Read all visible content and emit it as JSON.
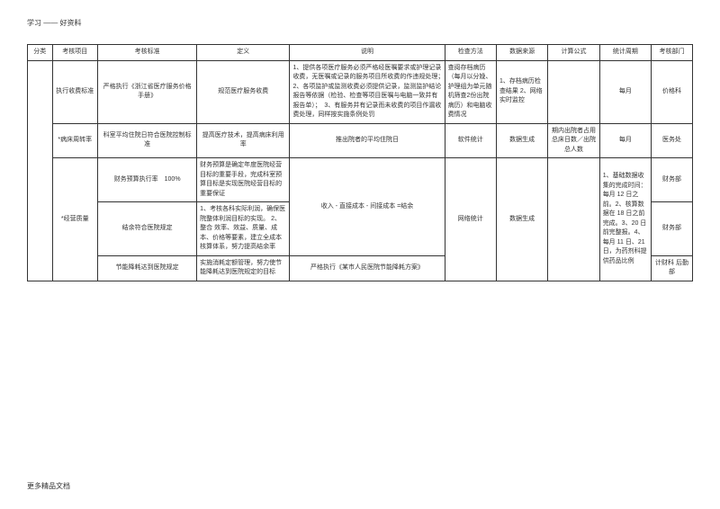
{
  "header": "学习 —— 好资料",
  "footer": "更多精品文档",
  "table": {
    "headers": [
      "分类",
      "考核项目",
      "考核标准",
      "定义",
      "说明",
      "检查方法",
      "数据来源",
      "计算公式",
      "统计周期",
      "考核部门"
    ],
    "rows": [
      {
        "item": "执行收费标准",
        "std": "严格执行《浙江省医疗服务价格手册》",
        "def": "规范医疗服务收费",
        "desc": "1、提供各项医疗服务必须严格经医嘱要求或护理记录收费，无医嘱或记录的服务项目所收费的作违规处理；　2、各项监护或监测收费必须提供记录，监测监护结论报告等依据（检验、检查等项目医嘱与电脑一致并有报告单）；　3、有服务并有记录而未收费的项目作漏收费处理，同样按实施条例处罚",
        "chk": "查阅存档病历（每月以分娩、护理组为单元随机筛查2份出院病历）和电脑收费情况",
        "src": "1、存档病历检查结果 2、网络实时监控",
        "calc": "",
        "stat": "每月",
        "dept": "价格科"
      },
      {
        "item": "*病床周转率",
        "std": "科室平均住院日符合医院控制标准",
        "def": "提高医疗技术，提高病床利用率",
        "desc": "推出院者的平均住院日",
        "chk": "软件统计",
        "src": "数据生成",
        "calc": "期内出院者占用总床日数／出院总人数",
        "stat": "每月",
        "dept": "医务处"
      },
      {
        "item_rowspan": 3,
        "item": "*经营质量",
        "std": "财务预算执行率　100%",
        "def": "财务预算是确定年度医院经营目标的重要手段，完成科室预算目标是实现医院经营目标的重要保证",
        "desc_rowspan": 3,
        "desc": "收入 - 直接成本 - 间接成本 =结余",
        "chk_rowspan": 3,
        "chk": "网络统计",
        "src_rowspan": 3,
        "src": "数据生成",
        "calc": "",
        "stat_rowspan": 3,
        "stat": "1、基础数据收集的完成时间：每月 12 日之前。2、核算数据在 18 日之前完成。3、20 日前完整报。4、每月 11 日、21 日，为药剂科提供药品比例",
        "dept": "财务部"
      },
      {
        "std": "结余符合医院规定",
        "def": "1、考核各科实际利润，确保医院整体利润目标的实现。 2、整合 效率、效益、质量、成本、价格等要素，建立全成本核算体系，努力提高结余率",
        "dept": "财务部"
      },
      {
        "std": "节能降耗达到医院规定",
        "def": "实施消耗定额管理，努力使节能降耗达到医院规定的目标",
        "desc_override": "严格执行《某市人民医院节能降耗方案》",
        "dept": "计财科 后勤部"
      }
    ]
  }
}
